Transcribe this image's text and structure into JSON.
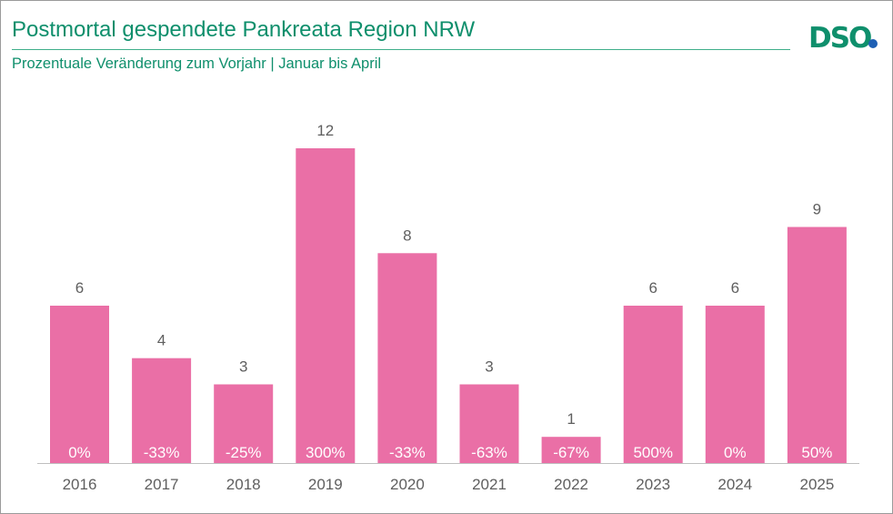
{
  "header": {
    "title": "Postmortal gespendete Pankreata Region NRW",
    "subtitle": "Prozentuale Veränderung zum Vorjahr | Januar bis April",
    "logo_text": "DSO"
  },
  "colors": {
    "bar": "#ea6fa6",
    "title": "#0f8f6c",
    "logo_green": "#0f8f6c",
    "logo_dot": "#1e5fb4",
    "axis": "#bfbfbf"
  },
  "chart_data": {
    "type": "bar",
    "title": "Postmortal gespendete Pankreata Region NRW",
    "subtitle": "Prozentuale Veränderung zum Vorjahr | Januar bis April",
    "categories": [
      "2016",
      "2017",
      "2018",
      "2019",
      "2020",
      "2021",
      "2022",
      "2023",
      "2024",
      "2025"
    ],
    "values": [
      6,
      4,
      3,
      12,
      8,
      3,
      1,
      6,
      6,
      9
    ],
    "change_labels": [
      "0%",
      "-33%",
      "-25%",
      "300%",
      "-33%",
      "-63%",
      "-67%",
      "500%",
      "0%",
      "50%"
    ],
    "ylim": [
      0,
      12
    ],
    "grid": false,
    "legend": "none"
  }
}
